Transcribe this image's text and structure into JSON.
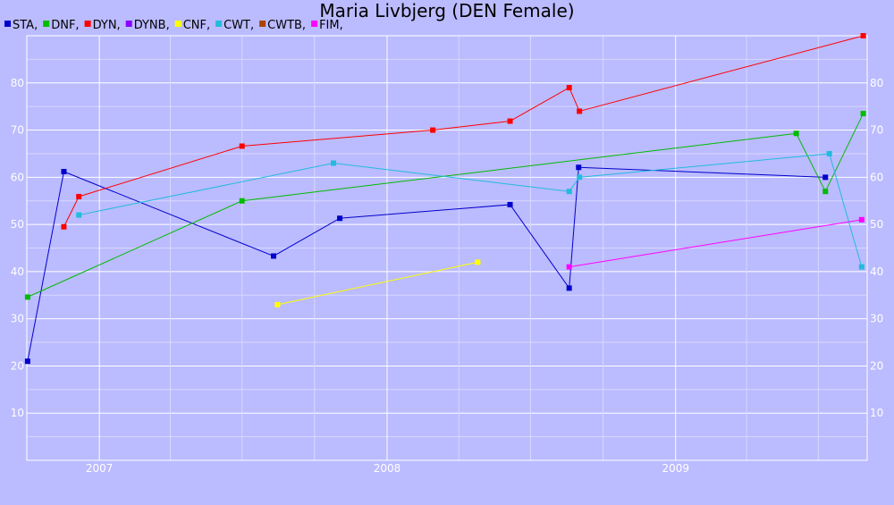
{
  "chart_data": {
    "type": "line",
    "title": "Maria Livbjerg (DEN Female)",
    "xlabel": "",
    "ylabel": "",
    "xlim": [
      "2006-10-01",
      "2009-09-01"
    ],
    "ylim": [
      0,
      90
    ],
    "yticks": [
      10,
      20,
      30,
      40,
      50,
      60,
      70,
      80
    ],
    "xticks": [
      {
        "label": "2007",
        "date": "2007-01-01"
      },
      {
        "label": "2008",
        "date": "2008-01-01"
      },
      {
        "label": "2009",
        "date": "2009-01-01"
      }
    ],
    "grid": true,
    "legend_position": "top-left",
    "series": [
      {
        "name": "STA",
        "color": "#0000cc",
        "points": [
          [
            "2006-10-02",
            21
          ],
          [
            "2006-11-17",
            61.2
          ],
          [
            "2007-08-10",
            43.3
          ],
          [
            "2007-11-02",
            51.3
          ],
          [
            "2008-06-05",
            54.2
          ],
          [
            "2008-08-19",
            36.5
          ],
          [
            "2008-08-31",
            62.1
          ],
          [
            "2009-07-10",
            60
          ]
        ]
      },
      {
        "name": "DNF",
        "color": "#00bb00",
        "points": [
          [
            "2006-10-02",
            34.6
          ],
          [
            "2007-07-01",
            55
          ],
          [
            "2009-06-03",
            69.3
          ],
          [
            "2009-07-10",
            57
          ],
          [
            "2009-08-27",
            73.5
          ]
        ]
      },
      {
        "name": "DYN",
        "color": "#ff0000",
        "points": [
          [
            "2006-11-17",
            49.5
          ],
          [
            "2006-12-06",
            55.9
          ],
          [
            "2007-07-01",
            66.6
          ],
          [
            "2008-02-28",
            70
          ],
          [
            "2008-06-05",
            71.9
          ],
          [
            "2008-08-19",
            79
          ],
          [
            "2008-09-01",
            74
          ],
          [
            "2009-08-27",
            90
          ]
        ]
      },
      {
        "name": "DYNB",
        "color": "#8800ff",
        "points": []
      },
      {
        "name": "CNF",
        "color": "#ffff00",
        "points": [
          [
            "2007-08-15",
            33
          ],
          [
            "2008-04-25",
            42
          ]
        ]
      },
      {
        "name": "CWT",
        "color": "#22bbdd",
        "points": [
          [
            "2006-12-06",
            52
          ],
          [
            "2007-10-25",
            63
          ],
          [
            "2008-08-19",
            57
          ],
          [
            "2008-09-01",
            60
          ],
          [
            "2009-07-15",
            65
          ],
          [
            "2009-08-25",
            41
          ]
        ]
      },
      {
        "name": "CWTB",
        "color": "#aa4400",
        "points": []
      },
      {
        "name": "FIM",
        "color": "#ff00ff",
        "points": [
          [
            "2008-08-19",
            41
          ],
          [
            "2009-08-25",
            51
          ]
        ]
      }
    ]
  }
}
